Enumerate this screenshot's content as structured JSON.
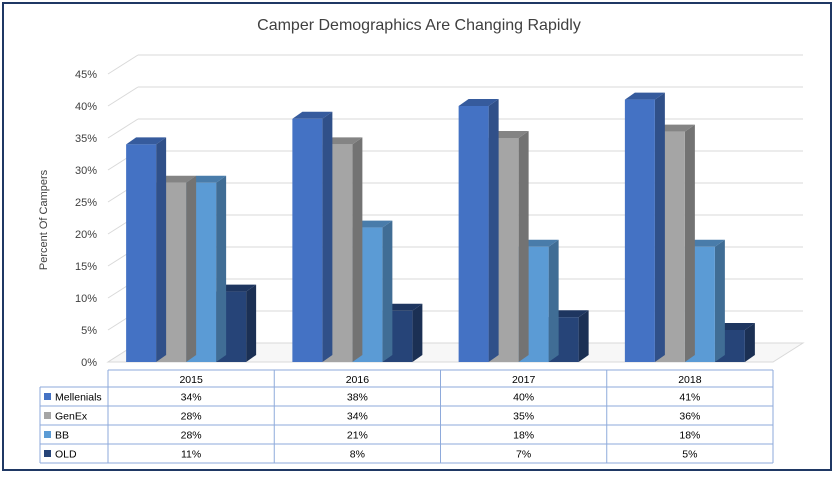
{
  "chart_data": {
    "type": "bar",
    "title": "Camper Demographics Are Changing Rapidly",
    "ylabel": "Percent Of Campers",
    "xlabel": "",
    "categories": [
      "2015",
      "2016",
      "2017",
      "2018"
    ],
    "ylim": [
      0,
      45
    ],
    "yticks": [
      "0%",
      "5%",
      "10%",
      "15%",
      "20%",
      "25%",
      "30%",
      "35%",
      "40%",
      "45%"
    ],
    "grid": true,
    "legend": "data-table",
    "series": [
      {
        "name": "Mellenials",
        "color": "#4472c4",
        "values": [
          34,
          38,
          40,
          41
        ],
        "labels": [
          "34%",
          "38%",
          "40%",
          "41%"
        ]
      },
      {
        "name": "GenEx",
        "color": "#a5a5a5",
        "values": [
          28,
          34,
          35,
          36
        ],
        "labels": [
          "28%",
          "34%",
          "35%",
          "36%"
        ]
      },
      {
        "name": "BB",
        "color": "#5b9bd5",
        "values": [
          28,
          21,
          18,
          18
        ],
        "labels": [
          "28%",
          "21%",
          "18%",
          "18%"
        ]
      },
      {
        "name": "OLD",
        "color": "#264478",
        "values": [
          11,
          8,
          7,
          5
        ],
        "labels": [
          "11%",
          "8%",
          "7%",
          "5%"
        ]
      }
    ]
  }
}
